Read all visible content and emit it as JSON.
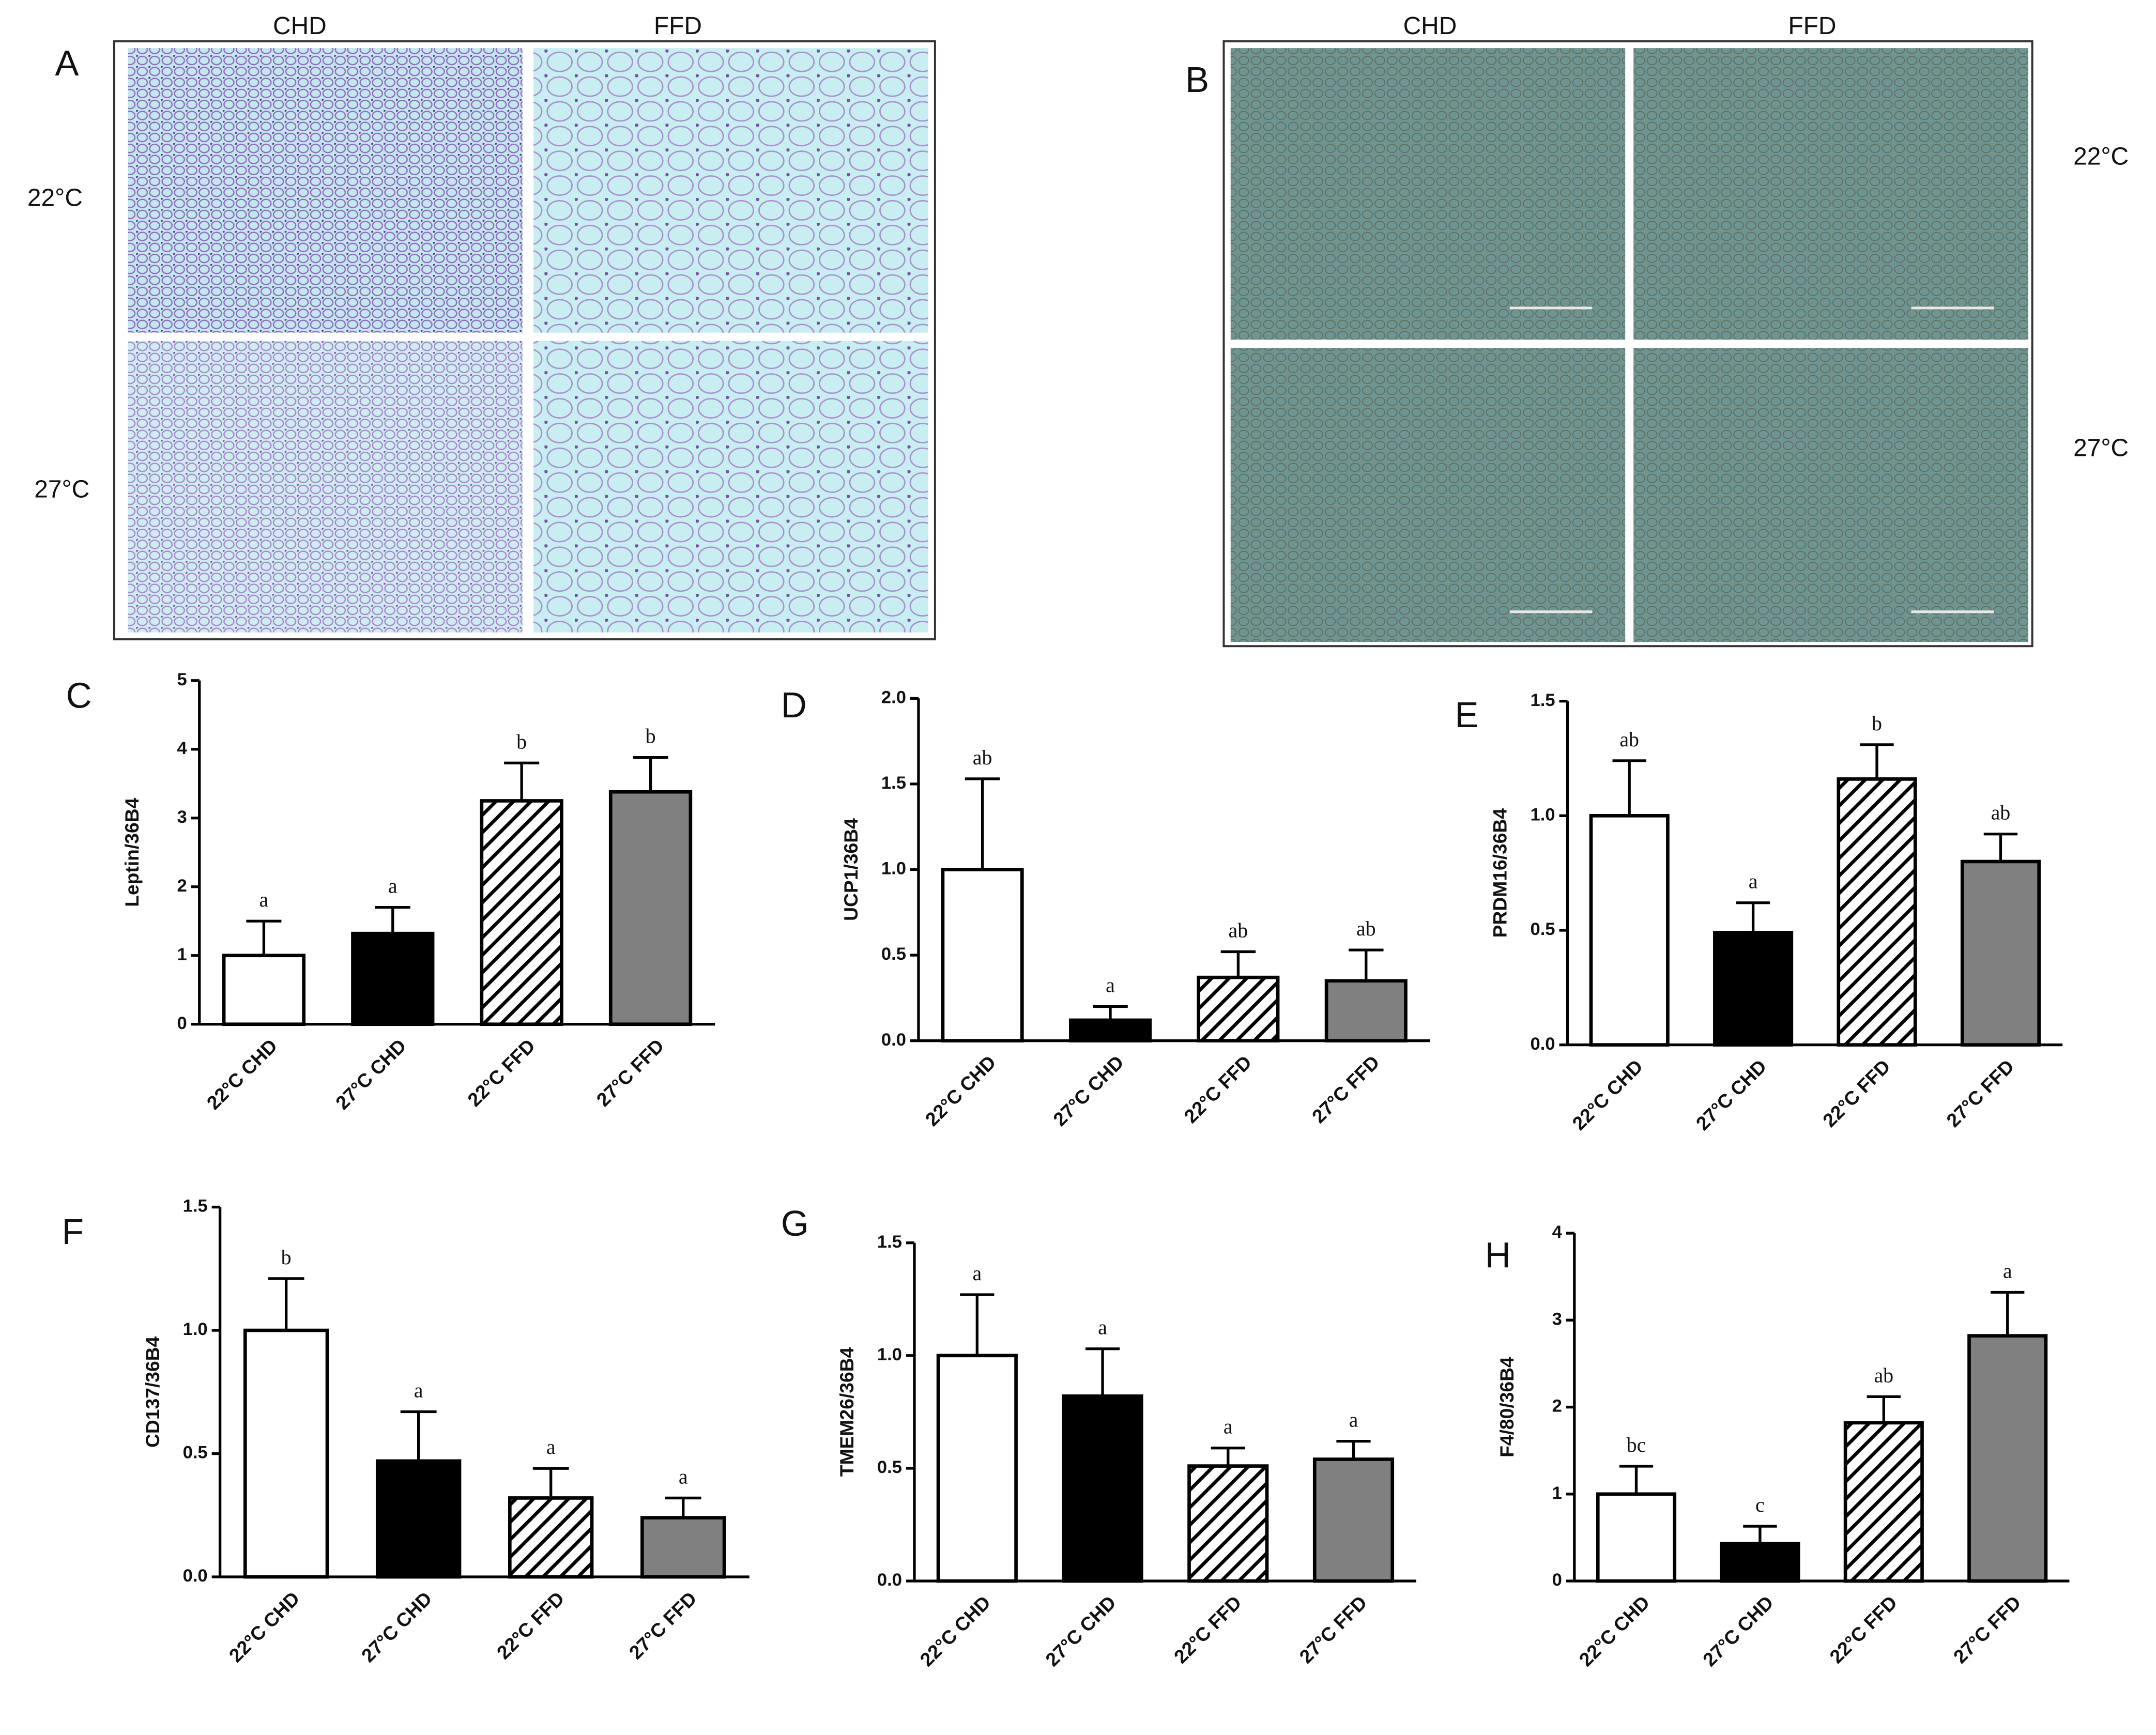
{
  "image_panels": [
    {
      "panel_label": "A",
      "column_labels": [
        "CHD",
        "FFD"
      ],
      "row_labels": [
        "22°C",
        "27°C"
      ]
    },
    {
      "panel_label": "B",
      "column_labels": [
        "CHD",
        "FFD"
      ],
      "row_labels": [
        "22°C",
        "27°C"
      ]
    }
  ],
  "chart_data": [
    {
      "type": "bar",
      "panel_label": "C",
      "ylabel": "Leptin/36B4",
      "categories": [
        "22°C CHD",
        "27°C CHD",
        "22°C FFD",
        "27°C FFD"
      ],
      "values": [
        1.0,
        1.32,
        3.25,
        3.38
      ],
      "errors": [
        0.5,
        0.38,
        0.55,
        0.5
      ],
      "annotations": [
        "a",
        "a",
        "b",
        "b"
      ],
      "colors": [
        "#ffffff",
        "#000000",
        "#ffffff",
        "#808080"
      ],
      "patterns": [
        "solid",
        "solid",
        "hatch",
        "solid"
      ],
      "ylim": [
        0,
        5
      ],
      "yticks": [
        0,
        1,
        2,
        3,
        4,
        5
      ]
    },
    {
      "type": "bar",
      "panel_label": "D",
      "ylabel": "UCP1/36B4",
      "categories": [
        "22°C CHD",
        "27°C CHD",
        "22°C FFD",
        "27°C FFD"
      ],
      "values": [
        1.0,
        0.12,
        0.37,
        0.35
      ],
      "errors": [
        0.53,
        0.08,
        0.15,
        0.18
      ],
      "annotations": [
        "ab",
        "a",
        "ab",
        "ab"
      ],
      "colors": [
        "#ffffff",
        "#000000",
        "#ffffff",
        "#808080"
      ],
      "patterns": [
        "solid",
        "solid",
        "hatch",
        "solid"
      ],
      "ylim": [
        0,
        2
      ],
      "yticks": [
        {
          "value": 0,
          "label": "0.0"
        },
        {
          "value": 0.5,
          "label": "0.5"
        },
        {
          "value": 1,
          "label": "1.0"
        },
        {
          "value": 1.5,
          "label": "1.5"
        },
        {
          "value": 2,
          "label": "2.0"
        }
      ]
    },
    {
      "type": "bar",
      "panel_label": "E",
      "ylabel": "PRDM16/36B4",
      "categories": [
        "22°C CHD",
        "27°C CHD",
        "22°C FFD",
        "27°C FFD"
      ],
      "values": [
        1.0,
        0.49,
        1.16,
        0.8
      ],
      "errors": [
        0.24,
        0.13,
        0.15,
        0.12
      ],
      "annotations": [
        "ab",
        "a",
        "b",
        "ab"
      ],
      "colors": [
        "#ffffff",
        "#000000",
        "#ffffff",
        "#808080"
      ],
      "patterns": [
        "solid",
        "solid",
        "hatch",
        "solid"
      ],
      "ylim": [
        0,
        1.5
      ],
      "yticks": [
        {
          "value": 0,
          "label": "0.0"
        },
        {
          "value": 0.5,
          "label": "0.5"
        },
        {
          "value": 1,
          "label": "1.0"
        },
        {
          "value": 1.5,
          "label": "1.5"
        }
      ]
    },
    {
      "type": "bar",
      "panel_label": "F",
      "ylabel": "CD137/36B4",
      "categories": [
        "22°C CHD",
        "27°C CHD",
        "22°C FFD",
        "27°C FFD"
      ],
      "values": [
        1.0,
        0.47,
        0.32,
        0.24
      ],
      "errors": [
        0.21,
        0.2,
        0.12,
        0.08
      ],
      "annotations": [
        "b",
        "a",
        "a",
        "a"
      ],
      "colors": [
        "#ffffff",
        "#000000",
        "#ffffff",
        "#808080"
      ],
      "patterns": [
        "solid",
        "solid",
        "hatch",
        "solid"
      ],
      "ylim": [
        0,
        1.5
      ],
      "yticks": [
        {
          "value": 0,
          "label": "0.0"
        },
        {
          "value": 0.5,
          "label": "0.5"
        },
        {
          "value": 1,
          "label": "1.0"
        },
        {
          "value": 1.5,
          "label": "1.5"
        }
      ]
    },
    {
      "type": "bar",
      "panel_label": "G",
      "ylabel": "TMEM26/36B4",
      "categories": [
        "22°C CHD",
        "27°C CHD",
        "22°C FFD",
        "27°C FFD"
      ],
      "values": [
        1.0,
        0.82,
        0.51,
        0.54
      ],
      "errors": [
        0.27,
        0.21,
        0.08,
        0.08
      ],
      "annotations": [
        "a",
        "a",
        "a",
        "a"
      ],
      "colors": [
        "#ffffff",
        "#000000",
        "#ffffff",
        "#808080"
      ],
      "patterns": [
        "solid",
        "solid",
        "hatch",
        "solid"
      ],
      "ylim": [
        0,
        1.5
      ],
      "yticks": [
        {
          "value": 0,
          "label": "0.0"
        },
        {
          "value": 0.5,
          "label": "0.5"
        },
        {
          "value": 1,
          "label": "1.0"
        },
        {
          "value": 1.5,
          "label": "1.5"
        }
      ]
    },
    {
      "type": "bar",
      "panel_label": "H",
      "ylabel": "F4/80/36B4",
      "categories": [
        "22°C CHD",
        "27°C CHD",
        "22°C FFD",
        "27°C FFD"
      ],
      "values": [
        1.0,
        0.43,
        1.82,
        2.82
      ],
      "errors": [
        0.32,
        0.2,
        0.3,
        0.5
      ],
      "annotations": [
        "bc",
        "c",
        "ab",
        "a"
      ],
      "colors": [
        "#ffffff",
        "#000000",
        "#ffffff",
        "#808080"
      ],
      "patterns": [
        "solid",
        "solid",
        "hatch",
        "solid"
      ],
      "ylim": [
        0,
        4
      ],
      "yticks": [
        0,
        1,
        2,
        3,
        4
      ]
    }
  ]
}
